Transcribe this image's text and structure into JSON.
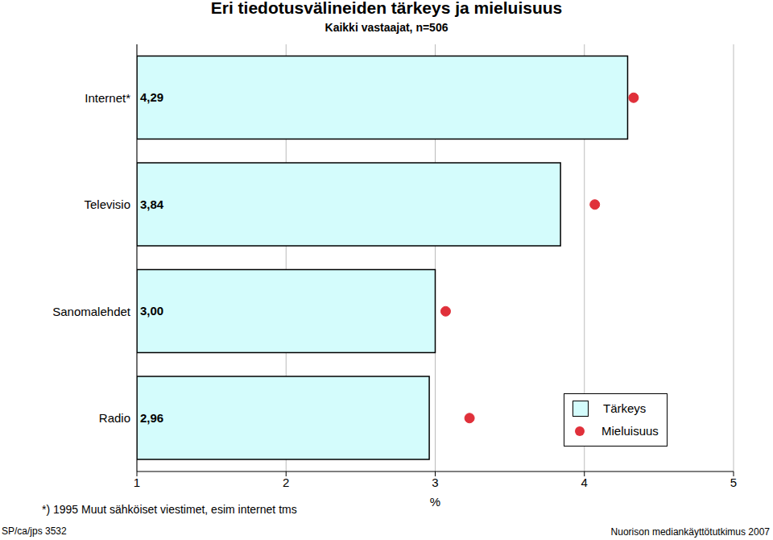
{
  "chart_data": {
    "type": "bar",
    "title": "Eri tiedotusvälineiden tärkeys ja mieluisuus",
    "subtitle": "Kaikki vastaajat, n=506",
    "orientation": "horizontal",
    "categories": [
      "Internet*",
      "Televisio",
      "Sanomalehdet",
      "Radio"
    ],
    "series": [
      {
        "name": "Tärkeys",
        "type": "bar",
        "color": "#d4fcfc",
        "values": [
          4.29,
          3.84,
          3.0,
          2.96
        ],
        "value_labels": [
          "4,29",
          "3,84",
          "3,00",
          "2,96"
        ],
        "data_labels": true
      },
      {
        "name": "Mieluisuus",
        "type": "scatter",
        "marker": "circle",
        "color": "#e0303a",
        "values": [
          4.33,
          4.07,
          3.07,
          3.23
        ]
      }
    ],
    "x_label": "%",
    "xlim": [
      1,
      5
    ],
    "xticks": [
      1,
      2,
      3,
      4,
      5
    ],
    "grid": true,
    "legend": "lower right",
    "annotations": [
      "*) 1995 Muut sähköiset viestimet, esim internet tms",
      "SP/ca/jps 3532",
      "Nuorison mediankäyttötutkimus 2007"
    ]
  }
}
